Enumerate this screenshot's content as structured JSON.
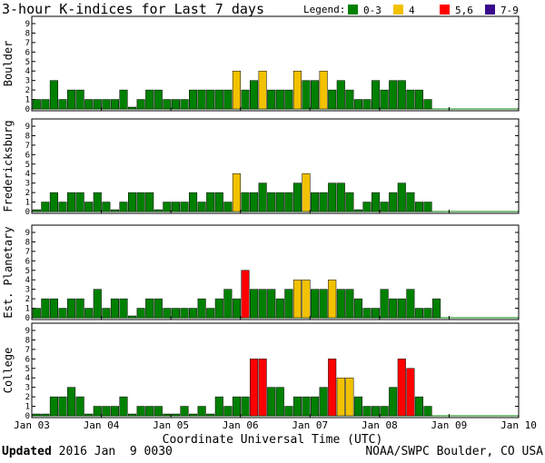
{
  "title": "3-hour K-indices for Last 7 days",
  "legend": {
    "label": "Legend:",
    "items": [
      {
        "label": "0-3",
        "color": "#008000"
      },
      {
        "label": "4",
        "color": "#f2c200"
      },
      {
        "label": "5,6",
        "color": "#ff0000"
      },
      {
        "label": "7-9",
        "color": "#3a0b8c"
      }
    ]
  },
  "footer": {
    "updated_label": "Updated",
    "updated_value": " 2016 Jan  9 0030",
    "credit": "NOAA/SWPC Boulder, CO USA"
  },
  "chart_data": {
    "type": "bar",
    "title": "3-hour K-indices for Last 7 days",
    "xlabel": "Coordinate Universal Time (UTC)",
    "x_ticks": [
      "Jan 03",
      "Jan 04",
      "Jan 05",
      "Jan 06",
      "Jan 07",
      "Jan 08",
      "Jan 09",
      "Jan 10"
    ],
    "ylim": [
      0,
      9
    ],
    "y_ticks": [
      "0",
      "1",
      "2",
      "3",
      "4",
      "5",
      "6",
      "7",
      "8",
      "9"
    ],
    "bins_per_day": 8,
    "grid": false,
    "legend_position": "top-right",
    "panels": [
      {
        "name": "Boulder",
        "values": [
          1,
          1,
          3,
          1,
          2,
          2,
          1,
          1,
          1,
          1,
          2,
          0,
          1,
          2,
          2,
          1,
          1,
          1,
          2,
          2,
          2,
          2,
          2,
          4,
          2,
          3,
          4,
          2,
          2,
          2,
          4,
          3,
          3,
          4,
          2,
          3,
          2,
          1,
          1,
          3,
          2,
          3,
          3,
          2,
          2,
          1
        ]
      },
      {
        "name": "Fredericksburg",
        "values": [
          0,
          1,
          2,
          1,
          2,
          2,
          1,
          2,
          1,
          0,
          1,
          2,
          2,
          2,
          0,
          1,
          1,
          1,
          2,
          1,
          2,
          2,
          1,
          4,
          2,
          2,
          3,
          2,
          2,
          2,
          3,
          4,
          2,
          2,
          3,
          3,
          2,
          0,
          1,
          2,
          1,
          2,
          3,
          2,
          1,
          1
        ]
      },
      {
        "name": "Est. Planetary",
        "values": [
          1,
          2,
          2,
          1,
          2,
          2,
          1,
          3,
          1,
          2,
          2,
          0,
          1,
          2,
          2,
          1,
          1,
          1,
          1,
          2,
          1,
          2,
          3,
          2,
          5,
          3,
          3,
          3,
          2,
          3,
          4,
          4,
          3,
          3,
          4,
          3,
          3,
          2,
          1,
          1,
          3,
          2,
          2,
          3,
          1,
          1,
          2
        ]
      },
      {
        "name": "College",
        "values": [
          0,
          0,
          2,
          2,
          3,
          2,
          0,
          1,
          1,
          1,
          2,
          0,
          1,
          1,
          1,
          0,
          0,
          1,
          0,
          1,
          0,
          2,
          1,
          2,
          2,
          6,
          6,
          3,
          3,
          1,
          2,
          2,
          2,
          3,
          6,
          4,
          4,
          2,
          1,
          1,
          1,
          3,
          6,
          5,
          2,
          1
        ]
      }
    ]
  }
}
